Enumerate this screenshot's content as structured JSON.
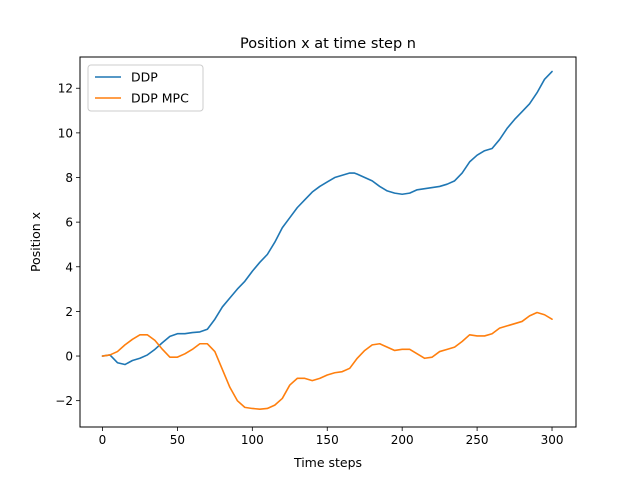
{
  "chart_data": {
    "type": "line",
    "title": "Position x at time step n",
    "xlabel": "Time steps",
    "ylabel": "Position x",
    "xlim": [
      -15,
      316
    ],
    "ylim": [
      -3.18,
      13.4
    ],
    "x_ticks": [
      0,
      50,
      100,
      150,
      200,
      250,
      300
    ],
    "y_ticks": [
      -2,
      0,
      2,
      4,
      6,
      8,
      10,
      12
    ],
    "grid": false,
    "legend_position": "top-left",
    "series": [
      {
        "name": "DDP",
        "color": "#1f77b4",
        "x": [
          0,
          5,
          10,
          15,
          20,
          25,
          30,
          35,
          40,
          45,
          50,
          55,
          60,
          65,
          70,
          75,
          80,
          85,
          90,
          95,
          100,
          105,
          110,
          115,
          120,
          125,
          130,
          135,
          140,
          145,
          150,
          155,
          160,
          165,
          168,
          170,
          175,
          180,
          185,
          190,
          195,
          200,
          205,
          210,
          215,
          220,
          225,
          230,
          235,
          240,
          245,
          250,
          255,
          260,
          265,
          270,
          275,
          280,
          285,
          290,
          295,
          300
        ],
        "y": [
          0.0,
          0.05,
          -0.3,
          -0.38,
          -0.2,
          -0.1,
          0.05,
          0.3,
          0.6,
          0.88,
          1.0,
          1.0,
          1.05,
          1.08,
          1.2,
          1.65,
          2.2,
          2.6,
          3.0,
          3.35,
          3.8,
          4.2,
          4.55,
          5.1,
          5.75,
          6.2,
          6.65,
          7.0,
          7.35,
          7.6,
          7.8,
          8.0,
          8.1,
          8.2,
          8.2,
          8.15,
          8.0,
          7.85,
          7.6,
          7.4,
          7.3,
          7.25,
          7.3,
          7.45,
          7.5,
          7.55,
          7.6,
          7.7,
          7.85,
          8.2,
          8.7,
          9.0,
          9.2,
          9.3,
          9.7,
          10.2,
          10.6,
          10.95,
          11.3,
          11.8,
          12.4,
          12.75
        ]
      },
      {
        "name": "DDP MPC",
        "color": "#ff7f0e",
        "x": [
          0,
          5,
          10,
          15,
          20,
          25,
          30,
          35,
          40,
          45,
          50,
          55,
          60,
          65,
          70,
          75,
          80,
          85,
          90,
          95,
          100,
          105,
          110,
          115,
          120,
          125,
          130,
          135,
          140,
          145,
          150,
          155,
          160,
          165,
          170,
          175,
          180,
          185,
          190,
          195,
          200,
          205,
          210,
          215,
          220,
          225,
          230,
          235,
          240,
          245,
          250,
          255,
          260,
          265,
          270,
          275,
          280,
          285,
          290,
          295,
          300
        ],
        "y": [
          0.0,
          0.05,
          0.2,
          0.5,
          0.75,
          0.95,
          0.95,
          0.7,
          0.3,
          -0.05,
          -0.05,
          0.1,
          0.3,
          0.55,
          0.55,
          0.2,
          -0.6,
          -1.4,
          -2.0,
          -2.3,
          -2.35,
          -2.38,
          -2.35,
          -2.2,
          -1.9,
          -1.3,
          -1.0,
          -1.0,
          -1.1,
          -1.0,
          -0.85,
          -0.75,
          -0.7,
          -0.55,
          -0.1,
          0.25,
          0.5,
          0.55,
          0.4,
          0.25,
          0.3,
          0.3,
          0.1,
          -0.1,
          -0.05,
          0.2,
          0.3,
          0.4,
          0.65,
          0.95,
          0.9,
          0.9,
          1.0,
          1.25,
          1.35,
          1.45,
          1.55,
          1.8,
          1.95,
          1.85,
          1.65
        ]
      }
    ]
  }
}
